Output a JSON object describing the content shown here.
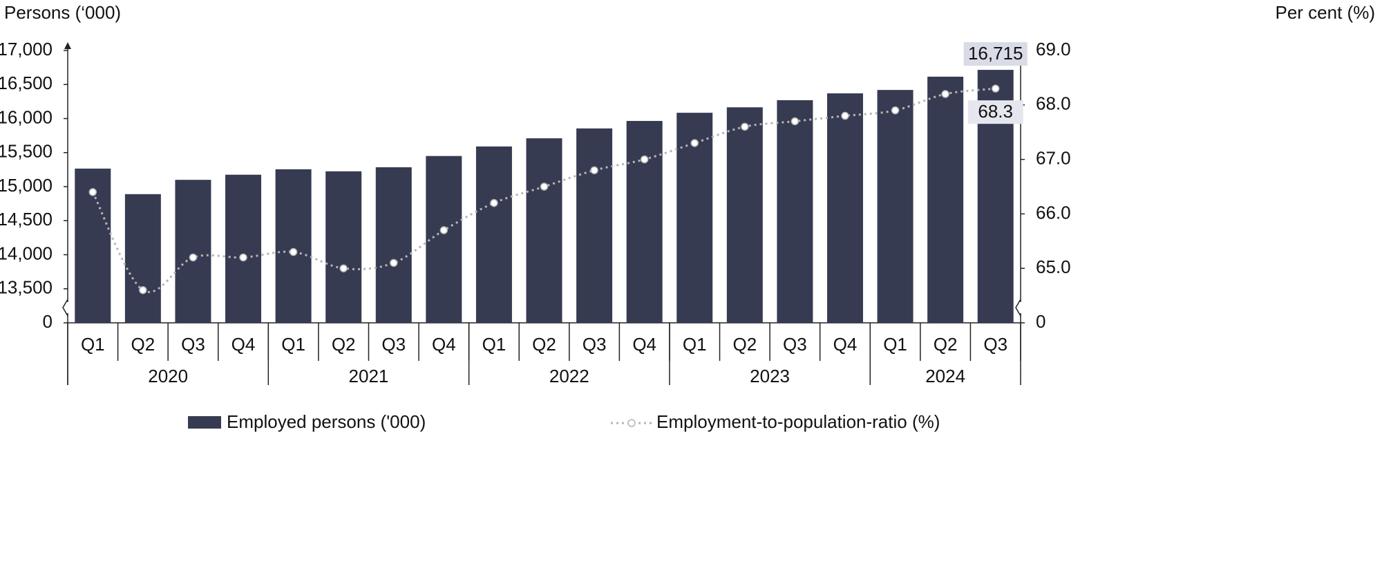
{
  "chart_data": {
    "type": "bar-line",
    "y_title": "Persons (‘000)",
    "y2_title": "Per cent (%)",
    "categories": [
      "Q1",
      "Q2",
      "Q3",
      "Q4",
      "Q1",
      "Q2",
      "Q3",
      "Q4",
      "Q1",
      "Q2",
      "Q3",
      "Q4",
      "Q1",
      "Q2",
      "Q3",
      "Q4",
      "Q1",
      "Q2",
      "Q3"
    ],
    "groups": [
      {
        "label": "2020",
        "count": 4
      },
      {
        "label": "2021",
        "count": 4
      },
      {
        "label": "2022",
        "count": 4
      },
      {
        "label": "2023",
        "count": 4
      },
      {
        "label": "2024",
        "count": 3
      }
    ],
    "series": [
      {
        "name": "Employed persons ('000)",
        "type": "bar",
        "color": "#363b52",
        "values": [
          15265,
          14890,
          15100,
          15175,
          15255,
          15225,
          15285,
          15450,
          15590,
          15710,
          15855,
          15965,
          16085,
          16165,
          16270,
          16370,
          16420,
          16615,
          16715
        ],
        "value_labels": [
          null,
          null,
          null,
          null,
          null,
          null,
          null,
          null,
          null,
          null,
          null,
          null,
          null,
          null,
          null,
          null,
          null,
          null,
          "16,715"
        ]
      },
      {
        "name": "Employment-to-population-ratio (%)",
        "type": "line",
        "axis": "y2",
        "color": "#b5b5b5",
        "values": [
          66.4,
          64.6,
          65.2,
          65.2,
          65.3,
          65.0,
          65.1,
          65.7,
          66.2,
          66.5,
          66.8,
          67.0,
          67.3,
          67.6,
          67.7,
          67.8,
          67.9,
          68.2,
          68.3
        ],
        "value_labels": [
          null,
          null,
          null,
          null,
          null,
          null,
          null,
          null,
          null,
          null,
          null,
          null,
          null,
          null,
          null,
          null,
          null,
          null,
          "68.3"
        ]
      }
    ],
    "ylim": [
      0,
      17000
    ],
    "y_axis_break": [
      0,
      13000
    ],
    "yticks": [
      0,
      {
        "value": 13500,
        "label": "13,500"
      },
      {
        "value": 14000,
        "label": "14,000"
      },
      {
        "value": 14500,
        "label": "14,500"
      },
      {
        "value": 15000,
        "label": "15,000"
      },
      {
        "value": 15500,
        "label": "15,500"
      },
      {
        "value": 16000,
        "label": "16,000"
      },
      {
        "value": 16500,
        "label": "16,500"
      },
      {
        "value": 17000,
        "label": "17,000"
      }
    ],
    "y2lim": [
      0,
      69
    ],
    "y2_axis_break": [
      0,
      64
    ],
    "y2ticks": [
      0,
      {
        "value": 65,
        "label": "65.0"
      },
      {
        "value": 66,
        "label": "66.0"
      },
      {
        "value": 67,
        "label": "67.0"
      },
      {
        "value": 68,
        "label": "68.0"
      },
      {
        "value": 69,
        "label": "69.0"
      }
    ],
    "grid": false
  }
}
